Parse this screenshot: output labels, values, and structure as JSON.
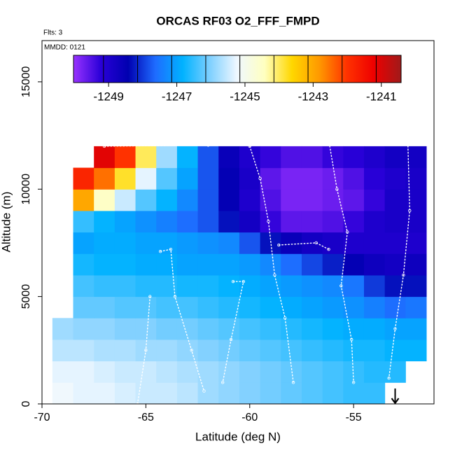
{
  "chart_data": {
    "type": "heatmap",
    "title": "ORCAS RF03 O2_FFF_FMPD",
    "annotations": [
      "Flts: 3",
      "MMDD: 0121"
    ],
    "x_label": "Latitude (deg N)",
    "y_label": "Altitude (m)",
    "xlim": [
      -70,
      -51.13
    ],
    "ylim": [
      0,
      16920
    ],
    "xticks": [
      -70,
      -65,
      -60,
      -55
    ],
    "yticks": [
      0,
      5000,
      10000,
      15000
    ],
    "lat": [
      -69,
      -68,
      -67,
      -66,
      -65,
      -64,
      -63,
      -62,
      -61,
      -60,
      -59,
      -58,
      -57,
      -56,
      -55,
      -54,
      -53,
      -52
    ],
    "alt": [
      500,
      1500,
      2500,
      3500,
      4500,
      5500,
      6500,
      7500,
      8500,
      9500,
      10500,
      11500
    ],
    "values": [
      [
        -1245.2,
        -1245.3,
        -1245.3,
        -1245.4,
        -1245.5,
        -1245.5,
        -1245.6,
        -1245.8,
        -1245.9,
        -1246.0,
        -1246.1,
        -1246.2,
        -1246.3,
        -1246.4,
        -1246.5,
        -1246.5,
        null,
        null
      ],
      [
        -1245.3,
        -1245.3,
        -1245.4,
        -1245.5,
        -1245.5,
        -1245.6,
        -1245.7,
        -1245.8,
        -1245.9,
        -1246.0,
        -1246.1,
        -1246.2,
        -1246.3,
        -1246.4,
        -1246.5,
        -1246.6,
        -1246.6,
        null
      ],
      [
        -1245.6,
        -1245.6,
        -1245.7,
        -1245.7,
        -1245.8,
        -1245.8,
        -1245.9,
        -1246.0,
        -1246.1,
        -1246.2,
        -1246.3,
        -1246.4,
        -1246.5,
        -1246.6,
        -1246.7,
        -1246.7,
        -1246.8,
        -1246.8
      ],
      [
        -1245.8,
        -1245.9,
        -1245.9,
        -1246.0,
        -1246.0,
        -1246.1,
        -1246.1,
        -1246.2,
        -1246.3,
        -1246.4,
        -1246.5,
        -1246.6,
        -1246.7,
        -1246.8,
        -1246.9,
        -1246.9,
        -1247.0,
        -1247.0
      ],
      [
        null,
        -1246.2,
        -1246.2,
        -1246.3,
        -1246.3,
        -1246.4,
        -1246.4,
        -1246.5,
        -1246.6,
        -1246.7,
        -1246.8,
        -1246.9,
        -1247.0,
        -1247.1,
        -1247.2,
        -1247.4,
        -1247.6,
        -1247.5
      ],
      [
        null,
        -1246.4,
        -1246.5,
        -1246.5,
        -1246.6,
        -1246.6,
        -1246.7,
        -1246.7,
        -1246.8,
        -1246.9,
        -1247.0,
        -1247.1,
        -1247.2,
        -1247.3,
        -1247.5,
        -1248.0,
        -1248.3,
        -1248.3
      ],
      [
        null,
        -1246.7,
        -1246.8,
        -1246.8,
        -1246.9,
        -1246.9,
        -1247.0,
        -1247.0,
        -1247.0,
        -1247.1,
        -1247.3,
        -1247.6,
        -1247.9,
        -1248.2,
        -1248.5,
        -1248.7,
        -1248.8,
        -1248.7
      ],
      [
        null,
        -1247.0,
        -1246.9,
        -1246.9,
        -1247.0,
        -1247.0,
        -1247.1,
        -1247.2,
        -1247.3,
        -1247.8,
        -1248.3,
        -1248.6,
        -1248.8,
        -1248.9,
        -1249.0,
        -1249.0,
        -1249.0,
        -1249.0
      ],
      [
        null,
        -1246.5,
        -1246.8,
        -1247.0,
        -1247.2,
        -1247.4,
        -1247.6,
        -1247.8,
        -1248.3,
        -1248.8,
        -1249.3,
        -1249.6,
        -1249.6,
        -1249.5,
        -1249.3,
        -1249.0,
        -1248.9,
        -1248.9
      ],
      [
        null,
        -1243.0,
        -1244.5,
        -1245.5,
        -1246.3,
        -1246.8,
        -1247.3,
        -1247.8,
        -1248.5,
        -1249.0,
        -1249.5,
        -1249.8,
        -1249.8,
        -1249.7,
        -1249.6,
        -1249.3,
        -1248.9,
        -1248.9
      ],
      [
        null,
        -1241.8,
        -1242.5,
        -1243.8,
        -1245.3,
        -1246.3,
        -1247.0,
        -1247.8,
        -1248.5,
        -1248.9,
        -1249.6,
        -1249.8,
        -1249.8,
        -1249.7,
        -1249.5,
        -1249.2,
        -1249.0,
        -1248.9
      ],
      [
        null,
        null,
        -1241.1,
        -1242.0,
        -1244.0,
        -1245.8,
        -1246.8,
        -1247.8,
        -1248.6,
        -1249.0,
        -1249.3,
        -1249.5,
        -1249.5,
        -1249.3,
        -1249.2,
        -1249.0,
        -1248.8,
        -1248.8
      ]
    ],
    "colorbar": {
      "lim": [
        -1250.03,
        -1240.42
      ],
      "ticks": [
        -1249,
        -1247,
        -1245,
        -1243,
        -1241
      ],
      "lines": [
        -1249.15,
        -1248.15,
        -1247.15,
        -1246.15,
        -1245.15,
        -1244.15,
        -1243.15,
        -1242.15,
        -1241.15
      ],
      "colors": [
        "#9932ff",
        "#2a00d8",
        "#0000b0",
        "#1e6cff",
        "#00b2ff",
        "#7fd0ff",
        "#f0f8ff",
        "#ffffc0",
        "#ffd700",
        "#ff9900",
        "#ff3300",
        "#ee0000",
        "#a01a1a"
      ]
    },
    "track": {
      "color": "#ffffff",
      "x": [
        -67,
        -62,
        -58,
        -55,
        -53,
        -52.4,
        null,
        -52.4,
        -52.3,
        -52.6,
        -53,
        -53.3,
        null,
        -56.2,
        -55.8,
        -55.3,
        -55.6,
        -55.1,
        -55,
        null,
        -60,
        -59.5,
        -59.1,
        -58.8,
        -58.3,
        -57.9,
        null,
        -58.6,
        -56.8,
        -56.2,
        null,
        -64.3,
        -63.8,
        -63.6,
        -62.8,
        -62.2,
        null,
        -60.8,
        -60.3,
        -60.9,
        -61.3,
        null,
        -64.8,
        -65,
        -65.4
      ],
      "y": [
        12000,
        12050,
        12150,
        12400,
        12600,
        12600,
        null,
        12600,
        9000,
        6000,
        3500,
        1200,
        null,
        12300,
        10000,
        8000,
        5500,
        3000,
        1000,
        null,
        12000,
        10500,
        8500,
        6000,
        4000,
        1000,
        null,
        7400,
        7500,
        7200,
        null,
        7100,
        7200,
        5000,
        2500,
        600,
        null,
        5700,
        5700,
        3000,
        1000,
        null,
        5000,
        2500,
        0
      ]
    },
    "arrow_lat": -53
  }
}
